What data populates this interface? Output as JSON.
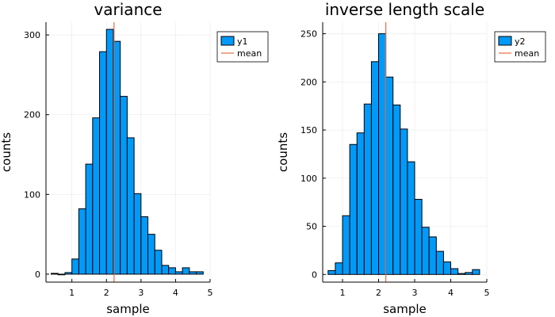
{
  "chart_data": [
    {
      "type": "bar",
      "title": "variance",
      "xlabel": "sample",
      "ylabel": "counts",
      "xlim": [
        0.25,
        5.0
      ],
      "ylim": [
        -10,
        316
      ],
      "xticks": [
        1,
        2,
        3,
        4,
        5
      ],
      "yticks": [
        0,
        100,
        200,
        300
      ],
      "grid": true,
      "legend_position": "top-right",
      "bar_color": "#009AF9",
      "mean_color": "#E26F46",
      "series": [
        {
          "name": "y1",
          "bin_width": 0.2,
          "bin_starts": [
            0.4,
            0.6,
            0.8,
            1.0,
            1.2,
            1.4,
            1.6,
            1.8,
            2.0,
            2.2,
            2.4,
            2.6,
            2.8,
            3.0,
            3.2,
            3.4,
            3.6,
            3.8,
            4.0,
            4.2,
            4.4,
            4.6
          ],
          "values": [
            1,
            0,
            2,
            19,
            82,
            138,
            196,
            279,
            307,
            292,
            223,
            171,
            101,
            72,
            50,
            30,
            11,
            8,
            3,
            8,
            3,
            3
          ]
        }
      ],
      "mean": {
        "name": "mean",
        "value": 2.22
      }
    },
    {
      "type": "bar",
      "title": "inverse length scale",
      "xlabel": "sample",
      "ylabel": "counts",
      "xlim": [
        0.45,
        5.0
      ],
      "ylim": [
        -8,
        262
      ],
      "xticks": [
        1,
        2,
        3,
        4,
        5
      ],
      "yticks": [
        0,
        50,
        100,
        150,
        200,
        250
      ],
      "grid": true,
      "legend_position": "top-right",
      "bar_color": "#009AF9",
      "mean_color": "#E26F46",
      "series": [
        {
          "name": "y2",
          "bin_width": 0.2,
          "bin_starts": [
            0.6,
            0.8,
            1.0,
            1.2,
            1.4,
            1.6,
            1.8,
            2.0,
            2.2,
            2.4,
            2.6,
            2.8,
            3.0,
            3.2,
            3.4,
            3.6,
            3.8,
            4.0,
            4.2,
            4.4,
            4.6
          ],
          "values": [
            4,
            12,
            61,
            135,
            147,
            177,
            221,
            250,
            205,
            176,
            151,
            117,
            78,
            49,
            39,
            24,
            13,
            6,
            1,
            2,
            5
          ]
        }
      ],
      "mean": {
        "name": "mean",
        "value": 2.2
      }
    }
  ]
}
